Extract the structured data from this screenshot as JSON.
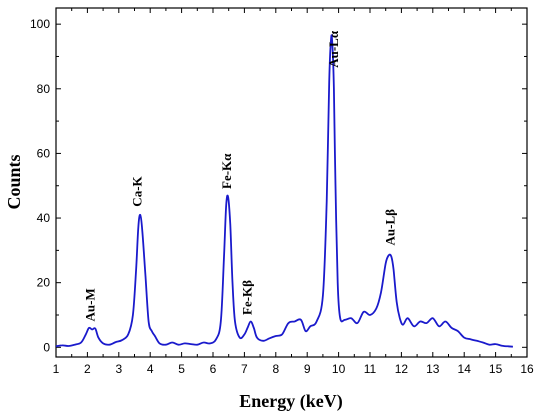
{
  "chart_data": {
    "type": "line",
    "title": "",
    "xlabel": "Energy (keV)",
    "ylabel": "Counts",
    "xlim": [
      1,
      16
    ],
    "ylim": [
      -3,
      105
    ],
    "grid": false,
    "x_ticks": [
      1,
      2,
      3,
      4,
      5,
      6,
      7,
      8,
      9,
      10,
      11,
      12,
      13,
      14,
      15,
      16
    ],
    "y_ticks": [
      0,
      20,
      40,
      60,
      80,
      100
    ],
    "series": [
      {
        "color": "#1a1acc",
        "x": [
          1.0,
          1.2,
          1.4,
          1.6,
          1.8,
          1.95,
          2.05,
          2.15,
          2.25,
          2.35,
          2.5,
          2.7,
          2.9,
          3.1,
          3.3,
          3.45,
          3.55,
          3.62,
          3.68,
          3.75,
          3.85,
          3.95,
          4.05,
          4.15,
          4.3,
          4.5,
          4.7,
          4.9,
          5.1,
          5.3,
          5.5,
          5.7,
          5.9,
          6.1,
          6.25,
          6.35,
          6.42,
          6.48,
          6.55,
          6.62,
          6.7,
          6.85,
          7.0,
          7.1,
          7.2,
          7.3,
          7.4,
          7.6,
          7.8,
          8.0,
          8.2,
          8.4,
          8.6,
          8.8,
          8.95,
          9.1,
          9.3,
          9.5,
          9.62,
          9.7,
          9.76,
          9.8,
          9.85,
          9.9,
          9.97,
          10.05,
          10.2,
          10.4,
          10.6,
          10.8,
          11.0,
          11.2,
          11.35,
          11.5,
          11.6,
          11.68,
          11.75,
          11.85,
          11.95,
          12.05,
          12.2,
          12.4,
          12.6,
          12.8,
          13.0,
          13.2,
          13.4,
          13.6,
          13.8,
          14.0,
          14.2,
          14.4,
          14.6,
          14.8,
          15.0,
          15.2,
          15.4,
          15.55
        ],
        "y": [
          0.3,
          0.6,
          0.4,
          0.8,
          1.5,
          4,
          6,
          5.5,
          5.8,
          3,
          1.2,
          0.8,
          1.6,
          2.2,
          4,
          10,
          24,
          37,
          41,
          36,
          22,
          8,
          5,
          3.5,
          1.2,
          0.8,
          1.5,
          0.8,
          1.2,
          1.0,
          0.8,
          1.5,
          1.2,
          2.5,
          8,
          28,
          44,
          46.5,
          38,
          20,
          8,
          3,
          4,
          6,
          8,
          6,
          3,
          2,
          2.8,
          3.5,
          4,
          7.5,
          8,
          8.5,
          5,
          6.5,
          8,
          16,
          45,
          82,
          95.5,
          94,
          80,
          50,
          20,
          9,
          8.5,
          9,
          7.5,
          11,
          10,
          12,
          17,
          26,
          28.5,
          28,
          24,
          14,
          9,
          7,
          9,
          6.5,
          8,
          7.5,
          9,
          6.5,
          8,
          6,
          5,
          3,
          2.5,
          2,
          1.5,
          0.8,
          1.0,
          0.5,
          0.3,
          0.2
        ]
      }
    ],
    "annotations": [
      {
        "text": "Au-M",
        "x": 2.1,
        "y": 8
      },
      {
        "text": "Ca-K",
        "x": 3.6,
        "y": 43.5
      },
      {
        "text": "Fe-Kα",
        "x": 6.45,
        "y": 49
      },
      {
        "text": "Fe-Kβ",
        "x": 7.1,
        "y": 10
      },
      {
        "text": "Au-Lα",
        "x": 9.85,
        "y": 86.5
      },
      {
        "text": "Au-Lβ",
        "x": 11.65,
        "y": 31.5
      }
    ]
  }
}
